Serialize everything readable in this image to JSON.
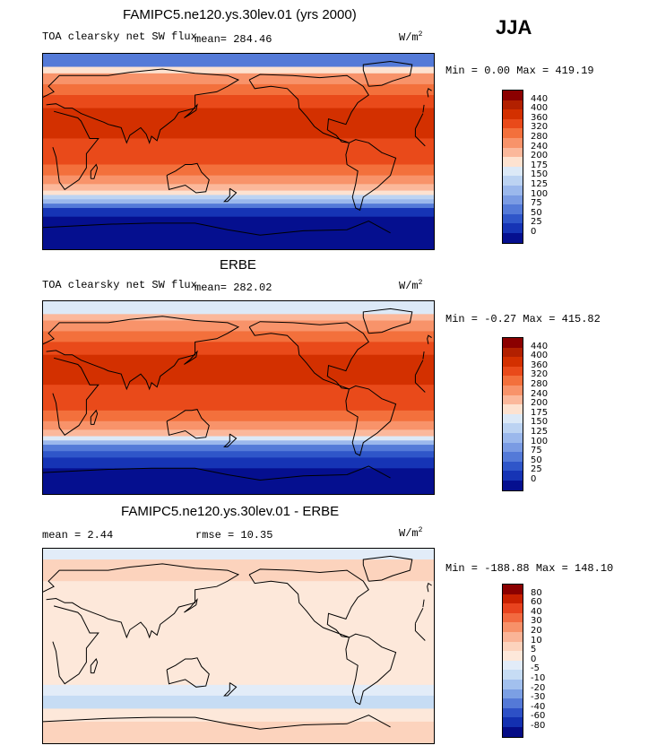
{
  "season_label": "JJA",
  "panels": [
    {
      "title": "FAMIPC5.ne120.ys.30lev.01 (yrs 2000)",
      "left_label": "TOA clearsky net SW flux",
      "mean_text": "mean= 284.46",
      "units_base": "W/m",
      "units_exp": "2",
      "minmax": "Min =   0.00 Max = 419.19",
      "colorbar_labels": [
        "440",
        "400",
        "360",
        "320",
        "280",
        "240",
        "200",
        "175",
        "150",
        "125",
        "100",
        "75",
        "50",
        "25",
        "0"
      ],
      "colors": [
        "#8b0000",
        "#b22000",
        "#d33000",
        "#e94a1a",
        "#f3703c",
        "#f8936a",
        "#fbb89b",
        "#fde2d0",
        "#dce9f7",
        "#bcd3f2",
        "#9bb8ec",
        "#7a9be3",
        "#547ad8",
        "#2f56c9",
        "#1634b5",
        "#050f8f"
      ],
      "bands": [
        {
          "lat_top": 90,
          "lat_bottom": 78,
          "color_index": 12
        },
        {
          "lat_top": 78,
          "lat_bottom": 72,
          "color_index": 7
        },
        {
          "lat_top": 72,
          "lat_bottom": 62,
          "color_index": 5
        },
        {
          "lat_top": 62,
          "lat_bottom": 52,
          "color_index": 4
        },
        {
          "lat_top": 52,
          "lat_bottom": 40,
          "color_index": 3
        },
        {
          "lat_top": 40,
          "lat_bottom": 12,
          "color_index": 2
        },
        {
          "lat_top": 12,
          "lat_bottom": -12,
          "color_index": 3
        },
        {
          "lat_top": -12,
          "lat_bottom": -22,
          "color_index": 4
        },
        {
          "lat_top": -22,
          "lat_bottom": -30,
          "color_index": 5
        },
        {
          "lat_top": -30,
          "lat_bottom": -36,
          "color_index": 6
        },
        {
          "lat_top": -36,
          "lat_bottom": -40,
          "color_index": 7
        },
        {
          "lat_top": -40,
          "lat_bottom": -44,
          "color_index": 9
        },
        {
          "lat_top": -44,
          "lat_bottom": -48,
          "color_index": 10
        },
        {
          "lat_top": -48,
          "lat_bottom": -52,
          "color_index": 12
        },
        {
          "lat_top": -52,
          "lat_bottom": -60,
          "color_index": 14
        },
        {
          "lat_top": -60,
          "lat_bottom": -90,
          "color_index": 15
        }
      ]
    },
    {
      "title": "ERBE",
      "left_label": "TOA clearsky net SW flux",
      "mean_text": "mean= 282.02",
      "units_base": "W/m",
      "units_exp": "2",
      "minmax": "Min =  -0.27 Max = 415.82",
      "colorbar_labels": [
        "440",
        "400",
        "360",
        "320",
        "280",
        "240",
        "200",
        "175",
        "150",
        "125",
        "100",
        "75",
        "50",
        "25",
        "0"
      ],
      "colors": [
        "#8b0000",
        "#b22000",
        "#d33000",
        "#e94a1a",
        "#f3703c",
        "#f8936a",
        "#fbb89b",
        "#fde2d0",
        "#dce9f7",
        "#bcd3f2",
        "#9bb8ec",
        "#7a9be3",
        "#547ad8",
        "#2f56c9",
        "#1634b5",
        "#050f8f"
      ],
      "bands": [
        {
          "lat_top": 90,
          "lat_bottom": 78,
          "color_index": 8
        },
        {
          "lat_top": 78,
          "lat_bottom": 72,
          "color_index": 6
        },
        {
          "lat_top": 72,
          "lat_bottom": 62,
          "color_index": 5
        },
        {
          "lat_top": 62,
          "lat_bottom": 52,
          "color_index": 4
        },
        {
          "lat_top": 52,
          "lat_bottom": 40,
          "color_index": 3
        },
        {
          "lat_top": 40,
          "lat_bottom": 12,
          "color_index": 2
        },
        {
          "lat_top": 12,
          "lat_bottom": -12,
          "color_index": 3
        },
        {
          "lat_top": -12,
          "lat_bottom": -22,
          "color_index": 4
        },
        {
          "lat_top": -22,
          "lat_bottom": -30,
          "color_index": 5
        },
        {
          "lat_top": -30,
          "lat_bottom": -36,
          "color_index": 6
        },
        {
          "lat_top": -36,
          "lat_bottom": -40,
          "color_index": 8
        },
        {
          "lat_top": -40,
          "lat_bottom": -44,
          "color_index": 10
        },
        {
          "lat_top": -44,
          "lat_bottom": -50,
          "color_index": 12
        },
        {
          "lat_top": -50,
          "lat_bottom": -56,
          "color_index": 13
        },
        {
          "lat_top": -56,
          "lat_bottom": -66,
          "color_index": 14
        },
        {
          "lat_top": -66,
          "lat_bottom": -90,
          "color_index": 15
        }
      ]
    },
    {
      "title": "FAMIPC5.ne120.ys.30lev.01 - ERBE",
      "mean_text": "mean =   2.44",
      "rmse_text": "rmse =  10.35",
      "units_base": "W/m",
      "units_exp": "2",
      "minmax": "Min = -188.88 Max = 148.10",
      "colorbar_labels": [
        "80",
        "60",
        "40",
        "30",
        "20",
        "10",
        "5",
        "0",
        "-5",
        "-10",
        "-20",
        "-30",
        "-40",
        "-60",
        "-80"
      ],
      "colors": [
        "#8b0000",
        "#c82000",
        "#e8431e",
        "#f26a40",
        "#f79169",
        "#fab497",
        "#fcd3bd",
        "#fde8da",
        "#e2ecf8",
        "#c6dcf4",
        "#a2c0ee",
        "#7b9fe4",
        "#5479d7",
        "#2d50c6",
        "#1330b0",
        "#050c86"
      ],
      "bands": [
        {
          "lat_top": 90,
          "lat_bottom": 80,
          "color_index": 8
        },
        {
          "lat_top": 80,
          "lat_bottom": 60,
          "color_index": 6
        },
        {
          "lat_top": 60,
          "lat_bottom": -36,
          "color_index": 7
        },
        {
          "lat_top": -36,
          "lat_bottom": -46,
          "color_index": 8
        },
        {
          "lat_top": -46,
          "lat_bottom": -58,
          "color_index": 9
        },
        {
          "lat_top": -58,
          "lat_bottom": -70,
          "color_index": 7
        },
        {
          "lat_top": -70,
          "lat_bottom": -90,
          "color_index": 6
        }
      ]
    }
  ]
}
